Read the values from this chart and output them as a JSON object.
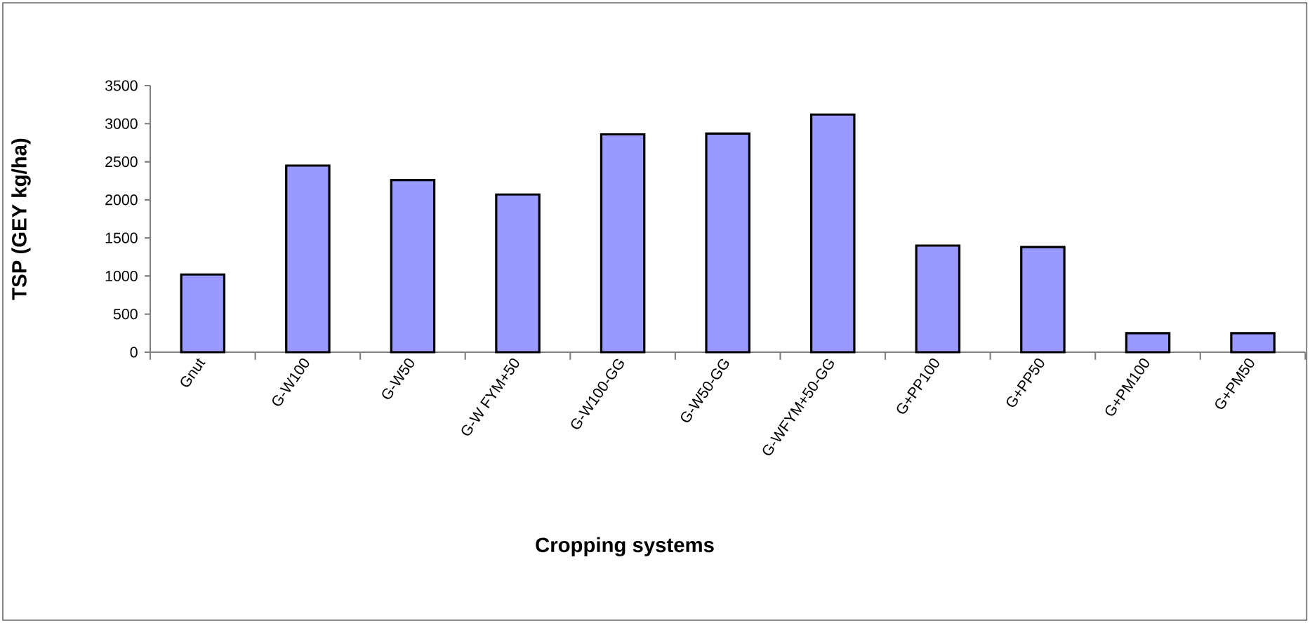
{
  "chart_data": {
    "type": "bar",
    "xlabel": "Cropping systems",
    "ylabel": "TSP (GEY kg/ha)",
    "categories": [
      "Gnut",
      "G-W100",
      "G-W50",
      "G-W FYM+50",
      "G-W100-GG",
      "G-W50-GG",
      "G-WFYM+50-GG",
      "G+PP100",
      "G+PP50",
      "G+PM100",
      "G+PM50"
    ],
    "values": [
      1020,
      2450,
      2260,
      2070,
      2860,
      2870,
      3120,
      1400,
      1380,
      250,
      250
    ],
    "color": "#9999ff",
    "ylim": [
      0,
      3500
    ],
    "yticks": [
      0,
      500,
      1000,
      1500,
      2000,
      2500,
      3000,
      3500
    ]
  }
}
